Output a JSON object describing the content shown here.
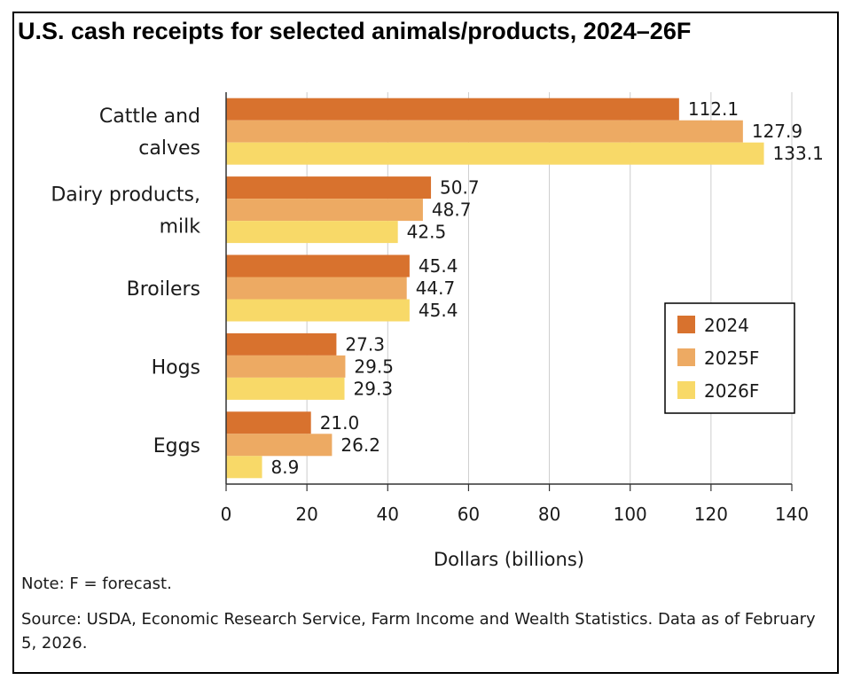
{
  "title": "U.S. cash receipts for selected animals/products, 2024–26F",
  "note": "Note: F = forecast.",
  "source": "Source: USDA, Economic Research Service, Farm Income and Wealth Statistics. Data as of February 5, 2026.",
  "chart_data": {
    "type": "bar",
    "orientation": "horizontal",
    "title": "U.S. cash receipts for selected animals/products, 2024–26F",
    "xlabel": "Dollars (billions)",
    "ylabel": "",
    "xlim": [
      0,
      140
    ],
    "xticks": [
      0,
      20,
      40,
      60,
      80,
      100,
      120,
      140
    ],
    "grid": "vertical",
    "legend_position": "right",
    "categories": [
      [
        "Cattle and",
        "calves"
      ],
      [
        "Dairy products,",
        "milk"
      ],
      [
        "Broilers"
      ],
      [
        "Hogs"
      ],
      [
        "Eggs"
      ]
    ],
    "series": [
      {
        "name": "2024",
        "color": "#d8722e",
        "values": [
          112.1,
          50.7,
          45.4,
          27.3,
          21.0
        ]
      },
      {
        "name": "2025F",
        "color": "#edaa63",
        "values": [
          127.9,
          48.7,
          44.7,
          29.5,
          26.2
        ]
      },
      {
        "name": "2026F",
        "color": "#f8d968",
        "values": [
          133.1,
          42.5,
          45.4,
          29.3,
          8.9
        ]
      }
    ]
  }
}
